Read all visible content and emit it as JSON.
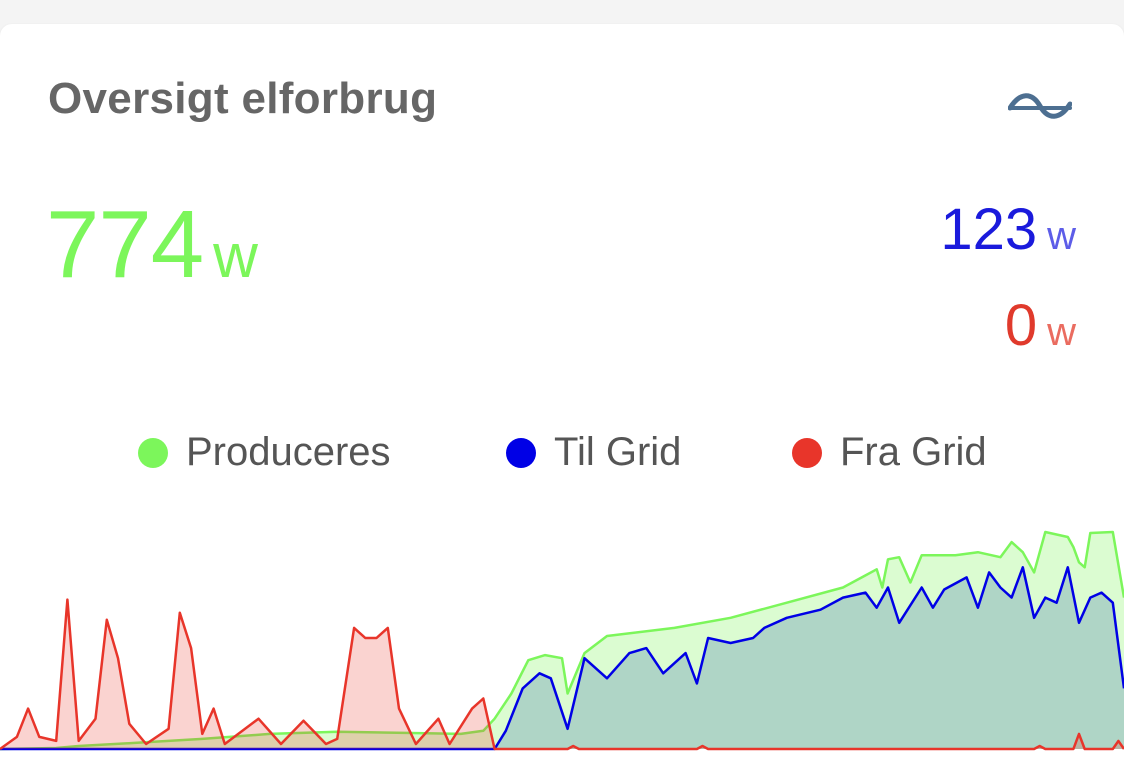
{
  "card": {
    "title": "Oversigt elforbrug",
    "icon": "sine-wave-icon",
    "main": {
      "value": "774",
      "unit": "w",
      "color": "#7cf65b"
    },
    "to_grid": {
      "value": "123",
      "unit": "w",
      "color": "#1a1adc"
    },
    "from_grid": {
      "value": "0",
      "unit": "w",
      "color": "#e03a2c"
    }
  },
  "legend": [
    {
      "label": "Produceres",
      "color": "#7cf65b"
    },
    {
      "label": "Til Grid",
      "color": "#0000e6"
    },
    {
      "label": "Fra Grid",
      "color": "#e8352a"
    }
  ],
  "chart_data": {
    "type": "area",
    "ylim": [
      0,
      215
    ],
    "xlim": [
      0,
      1
    ],
    "series": [
      {
        "name": "Produceres",
        "color": "#7cf65b",
        "points": [
          [
            0.0,
            0
          ],
          [
            0.05,
            1
          ],
          [
            0.07,
            3
          ],
          [
            0.12,
            6
          ],
          [
            0.18,
            10
          ],
          [
            0.24,
            15
          ],
          [
            0.3,
            17
          ],
          [
            0.36,
            16
          ],
          [
            0.41,
            15
          ],
          [
            0.43,
            18
          ],
          [
            0.44,
            30
          ],
          [
            0.455,
            55
          ],
          [
            0.47,
            88
          ],
          [
            0.485,
            93
          ],
          [
            0.5,
            90
          ],
          [
            0.505,
            55
          ],
          [
            0.52,
            95
          ],
          [
            0.54,
            112
          ],
          [
            0.6,
            120
          ],
          [
            0.65,
            130
          ],
          [
            0.7,
            145
          ],
          [
            0.75,
            160
          ],
          [
            0.77,
            172
          ],
          [
            0.78,
            178
          ],
          [
            0.785,
            160
          ],
          [
            0.79,
            188
          ],
          [
            0.8,
            190
          ],
          [
            0.81,
            165
          ],
          [
            0.82,
            192
          ],
          [
            0.85,
            192
          ],
          [
            0.87,
            195
          ],
          [
            0.89,
            190
          ],
          [
            0.9,
            205
          ],
          [
            0.91,
            195
          ],
          [
            0.92,
            175
          ],
          [
            0.93,
            215
          ],
          [
            0.95,
            210
          ],
          [
            0.955,
            200
          ],
          [
            0.96,
            185
          ],
          [
            0.965,
            180
          ],
          [
            0.97,
            214
          ],
          [
            0.99,
            215
          ],
          [
            1.0,
            150
          ]
        ]
      },
      {
        "name": "Til Grid",
        "color": "#0000e6",
        "points": [
          [
            0.0,
            0
          ],
          [
            0.44,
            0
          ],
          [
            0.45,
            18
          ],
          [
            0.465,
            60
          ],
          [
            0.48,
            75
          ],
          [
            0.49,
            70
          ],
          [
            0.505,
            20
          ],
          [
            0.52,
            90
          ],
          [
            0.54,
            70
          ],
          [
            0.56,
            95
          ],
          [
            0.575,
            100
          ],
          [
            0.59,
            75
          ],
          [
            0.61,
            95
          ],
          [
            0.62,
            65
          ],
          [
            0.63,
            110
          ],
          [
            0.65,
            105
          ],
          [
            0.67,
            110
          ],
          [
            0.68,
            120
          ],
          [
            0.7,
            130
          ],
          [
            0.73,
            138
          ],
          [
            0.75,
            150
          ],
          [
            0.77,
            155
          ],
          [
            0.78,
            140
          ],
          [
            0.79,
            160
          ],
          [
            0.8,
            125
          ],
          [
            0.82,
            160
          ],
          [
            0.83,
            140
          ],
          [
            0.84,
            158
          ],
          [
            0.86,
            170
          ],
          [
            0.87,
            140
          ],
          [
            0.88,
            175
          ],
          [
            0.89,
            160
          ],
          [
            0.9,
            150
          ],
          [
            0.91,
            180
          ],
          [
            0.92,
            130
          ],
          [
            0.93,
            150
          ],
          [
            0.94,
            145
          ],
          [
            0.95,
            180
          ],
          [
            0.96,
            125
          ],
          [
            0.97,
            150
          ],
          [
            0.98,
            155
          ],
          [
            0.99,
            145
          ],
          [
            1.0,
            60
          ]
        ]
      },
      {
        "name": "Fra Grid",
        "color": "#e8352a",
        "points": [
          [
            0.0,
            0
          ],
          [
            0.015,
            12
          ],
          [
            0.025,
            40
          ],
          [
            0.035,
            12
          ],
          [
            0.05,
            8
          ],
          [
            0.06,
            148
          ],
          [
            0.07,
            8
          ],
          [
            0.085,
            30
          ],
          [
            0.095,
            128
          ],
          [
            0.105,
            90
          ],
          [
            0.115,
            25
          ],
          [
            0.13,
            5
          ],
          [
            0.15,
            20
          ],
          [
            0.16,
            135
          ],
          [
            0.17,
            100
          ],
          [
            0.18,
            15
          ],
          [
            0.19,
            40
          ],
          [
            0.2,
            5
          ],
          [
            0.23,
            30
          ],
          [
            0.25,
            5
          ],
          [
            0.27,
            28
          ],
          [
            0.29,
            5
          ],
          [
            0.3,
            10
          ],
          [
            0.315,
            120
          ],
          [
            0.325,
            110
          ],
          [
            0.335,
            110
          ],
          [
            0.345,
            120
          ],
          [
            0.355,
            40
          ],
          [
            0.37,
            5
          ],
          [
            0.39,
            30
          ],
          [
            0.4,
            5
          ],
          [
            0.42,
            40
          ],
          [
            0.43,
            50
          ],
          [
            0.44,
            0
          ],
          [
            0.505,
            0
          ],
          [
            0.51,
            3
          ],
          [
            0.515,
            0
          ],
          [
            0.62,
            0
          ],
          [
            0.625,
            3
          ],
          [
            0.63,
            0
          ],
          [
            0.92,
            0
          ],
          [
            0.925,
            3
          ],
          [
            0.93,
            0
          ],
          [
            0.955,
            0
          ],
          [
            0.96,
            15
          ],
          [
            0.965,
            0
          ],
          [
            0.99,
            0
          ],
          [
            0.995,
            8
          ],
          [
            1.0,
            0
          ]
        ]
      }
    ]
  }
}
